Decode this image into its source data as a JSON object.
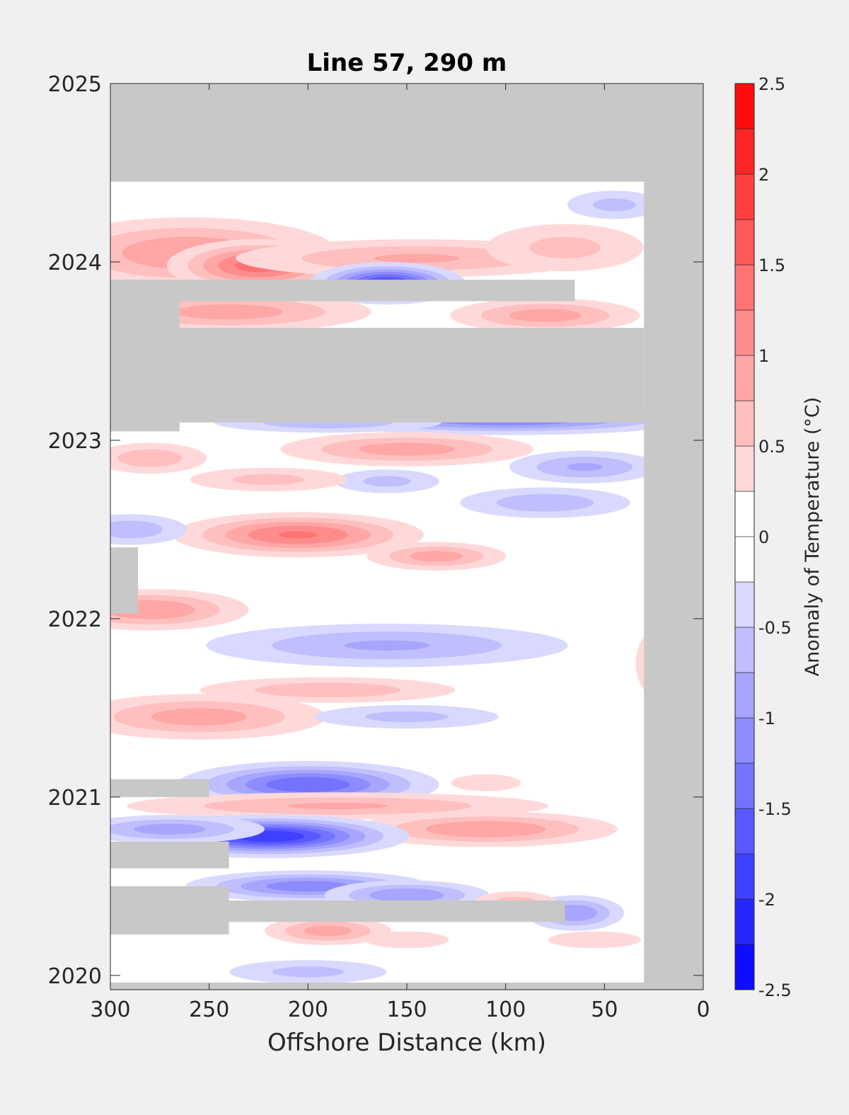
{
  "chart_data": {
    "type": "heatmap",
    "title": "Line 57, 290 m",
    "xlabel": "Offshore Distance (km)",
    "ylabel": "",
    "xlim": [
      300,
      0
    ],
    "ylim": [
      2019.92,
      2025.0
    ],
    "x_reversed": true,
    "x_ticks": [
      300,
      250,
      200,
      150,
      100,
      50,
      0
    ],
    "y_ticks": [
      2020,
      2021,
      2022,
      2023,
      2024,
      2025
    ],
    "colorbar": {
      "label": "Anomaly of Temperature (°C)",
      "range": [
        -2.5,
        2.5
      ],
      "step": 0.25,
      "ticks": [
        -2.5,
        -2,
        -1.5,
        -1,
        -0.5,
        0,
        0.5,
        1,
        1.5,
        2,
        2.5
      ],
      "tick_labels": [
        "-2.5",
        "-2",
        "-1.5",
        "-1",
        "-0.5",
        "0",
        "0.5",
        "1",
        "1.5",
        "2",
        "2.5"
      ],
      "cold_color": "#0000ff",
      "neutral_color": "#ffffff",
      "warm_color": "#ff0000"
    },
    "no_data_color": "#c8c8c8",
    "no_data_regions": [
      {
        "x": [
          300,
          0
        ],
        "y": [
          2024.45,
          2025.0
        ]
      },
      {
        "x": [
          30,
          0
        ],
        "y": [
          2019.92,
          2024.45
        ]
      },
      {
        "x": [
          300,
          30
        ],
        "y": [
          2019.92,
          2019.96
        ]
      },
      {
        "x": [
          300,
          30
        ],
        "y": [
          2023.1,
          2023.63
        ]
      },
      {
        "x": [
          300,
          265
        ],
        "y": [
          2023.05,
          2023.9
        ]
      },
      {
        "x": [
          300,
          65
        ],
        "y": [
          2023.78,
          2023.9
        ]
      },
      {
        "x": [
          300,
          286
        ],
        "y": [
          2022.03,
          2022.4
        ]
      },
      {
        "x": [
          300,
          250
        ],
        "y": [
          2021.0,
          2021.1
        ]
      },
      {
        "x": [
          300,
          240
        ],
        "y": [
          2020.6,
          2020.75
        ]
      },
      {
        "x": [
          300,
          240
        ],
        "y": [
          2020.23,
          2020.5
        ]
      },
      {
        "x": [
          240,
          70
        ],
        "y": [
          2020.3,
          2020.42
        ]
      }
    ],
    "anomalies": [
      {
        "x": 260,
        "y": 2024.05,
        "value": 1.0,
        "sx": 45,
        "sy": 0.12
      },
      {
        "x": 225,
        "y": 2023.98,
        "value": 1.4,
        "sx": 25,
        "sy": 0.08
      },
      {
        "x": 145,
        "y": 2024.02,
        "value": 0.8,
        "sx": 60,
        "sy": 0.07
      },
      {
        "x": 70,
        "y": 2024.08,
        "value": 0.6,
        "sx": 30,
        "sy": 0.1
      },
      {
        "x": 45,
        "y": 2024.32,
        "value": -0.6,
        "sx": 18,
        "sy": 0.06
      },
      {
        "x": 160,
        "y": 2023.88,
        "value": -1.8,
        "sx": 20,
        "sy": 0.06
      },
      {
        "x": 240,
        "y": 2023.72,
        "value": 0.9,
        "sx": 45,
        "sy": 0.07
      },
      {
        "x": 80,
        "y": 2023.7,
        "value": 0.9,
        "sx": 30,
        "sy": 0.06
      },
      {
        "x": 100,
        "y": 2023.12,
        "value": -1.3,
        "sx": 55,
        "sy": 0.05
      },
      {
        "x": 190,
        "y": 2023.1,
        "value": -0.7,
        "sx": 40,
        "sy": 0.04
      },
      {
        "x": 150,
        "y": 2022.95,
        "value": 0.9,
        "sx": 40,
        "sy": 0.06
      },
      {
        "x": 280,
        "y": 2022.9,
        "value": 0.7,
        "sx": 20,
        "sy": 0.06
      },
      {
        "x": 60,
        "y": 2022.85,
        "value": -0.8,
        "sx": 25,
        "sy": 0.06
      },
      {
        "x": 160,
        "y": 2022.77,
        "value": -0.6,
        "sx": 20,
        "sy": 0.05
      },
      {
        "x": 220,
        "y": 2022.78,
        "value": 0.6,
        "sx": 30,
        "sy": 0.05
      },
      {
        "x": 80,
        "y": 2022.65,
        "value": -0.7,
        "sx": 30,
        "sy": 0.06
      },
      {
        "x": 205,
        "y": 2022.47,
        "value": 1.3,
        "sx": 35,
        "sy": 0.07
      },
      {
        "x": 290,
        "y": 2022.5,
        "value": -0.7,
        "sx": 20,
        "sy": 0.06
      },
      {
        "x": 135,
        "y": 2022.35,
        "value": 0.9,
        "sx": 22,
        "sy": 0.05
      },
      {
        "x": 280,
        "y": 2022.05,
        "value": 1.0,
        "sx": 30,
        "sy": 0.07
      },
      {
        "x": 160,
        "y": 2021.85,
        "value": -0.8,
        "sx": 60,
        "sy": 0.08
      },
      {
        "x": 20,
        "y": 2021.75,
        "value": 0.5,
        "sx": 12,
        "sy": 0.18
      },
      {
        "x": 190,
        "y": 2021.6,
        "value": 0.7,
        "sx": 45,
        "sy": 0.05
      },
      {
        "x": 255,
        "y": 2021.45,
        "value": 0.9,
        "sx": 40,
        "sy": 0.08
      },
      {
        "x": 150,
        "y": 2021.45,
        "value": -0.6,
        "sx": 35,
        "sy": 0.05
      },
      {
        "x": 200,
        "y": 2021.07,
        "value": -1.5,
        "sx": 35,
        "sy": 0.07
      },
      {
        "x": 185,
        "y": 2020.95,
        "value": 0.8,
        "sx": 70,
        "sy": 0.05
      },
      {
        "x": 110,
        "y": 2020.82,
        "value": 1.0,
        "sx": 40,
        "sy": 0.06
      },
      {
        "x": 110,
        "y": 2021.08,
        "value": 0.5,
        "sx": 15,
        "sy": 0.04
      },
      {
        "x": 220,
        "y": 2020.78,
        "value": -2.0,
        "sx": 35,
        "sy": 0.06
      },
      {
        "x": 270,
        "y": 2020.82,
        "value": -0.9,
        "sx": 30,
        "sy": 0.05
      },
      {
        "x": 200,
        "y": 2020.5,
        "value": -1.2,
        "sx": 35,
        "sy": 0.05
      },
      {
        "x": 150,
        "y": 2020.45,
        "value": -1.0,
        "sx": 25,
        "sy": 0.05
      },
      {
        "x": 65,
        "y": 2020.35,
        "value": -1.0,
        "sx": 15,
        "sy": 0.06
      },
      {
        "x": 95,
        "y": 2020.4,
        "value": 0.7,
        "sx": 15,
        "sy": 0.05
      },
      {
        "x": 190,
        "y": 2020.25,
        "value": 0.9,
        "sx": 20,
        "sy": 0.05
      },
      {
        "x": 200,
        "y": 2020.02,
        "value": -0.6,
        "sx": 30,
        "sy": 0.05
      },
      {
        "x": 55,
        "y": 2020.2,
        "value": 0.5,
        "sx": 20,
        "sy": 0.04
      },
      {
        "x": 150,
        "y": 2020.2,
        "value": 0.5,
        "sx": 18,
        "sy": 0.04
      }
    ]
  }
}
